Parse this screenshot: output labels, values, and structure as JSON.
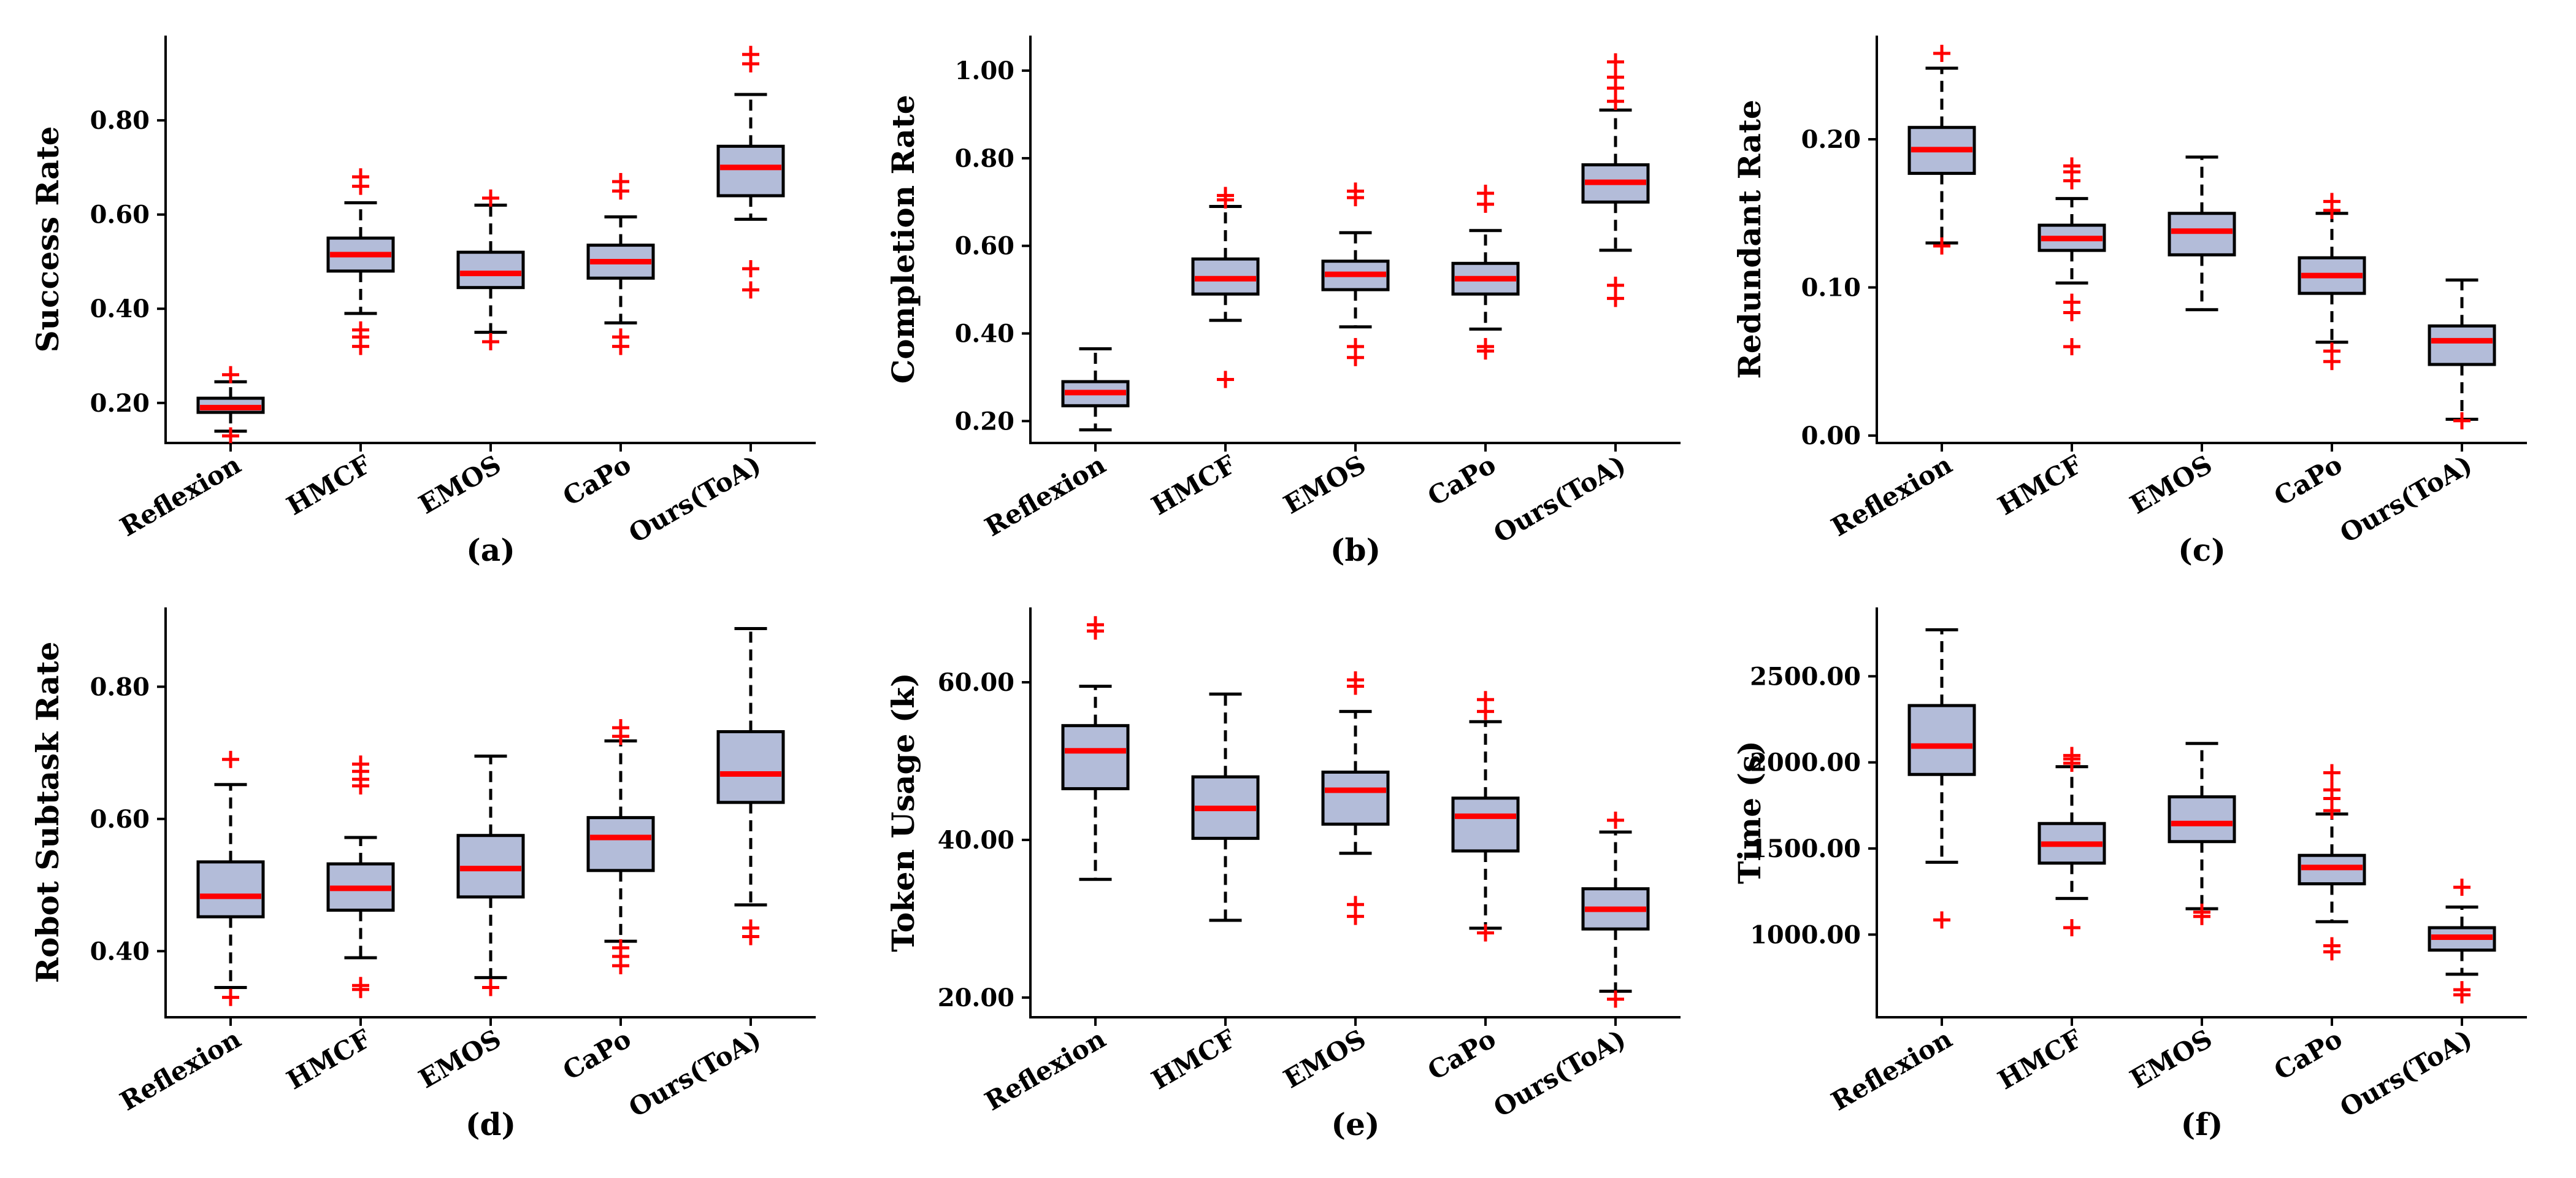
{
  "chart_data": [
    {
      "type": "box",
      "panel_label": "(a)",
      "ylabel": "Success Rate",
      "categories": [
        "Reflexion",
        "HMCF",
        "EMOS",
        "CaPo",
        "Ours(ToA)"
      ],
      "yticks": [
        0.2,
        0.4,
        0.6,
        0.8
      ],
      "tick_labels": [
        "0.20",
        "0.40",
        "0.60",
        "0.80"
      ],
      "ylim": [
        0.115,
        0.98
      ],
      "boxes": [
        {
          "whislo": 0.14,
          "q1": 0.18,
          "med": 0.19,
          "q3": 0.21,
          "whishi": 0.245,
          "fliers": [
            0.13,
            0.26
          ]
        },
        {
          "whislo": 0.39,
          "q1": 0.48,
          "med": 0.515,
          "q3": 0.55,
          "whishi": 0.625,
          "fliers": [
            0.32,
            0.34,
            0.355,
            0.66,
            0.68
          ]
        },
        {
          "whislo": 0.35,
          "q1": 0.445,
          "med": 0.475,
          "q3": 0.52,
          "whishi": 0.62,
          "fliers": [
            0.33,
            0.635
          ]
        },
        {
          "whislo": 0.37,
          "q1": 0.465,
          "med": 0.5,
          "q3": 0.535,
          "whishi": 0.595,
          "fliers": [
            0.32,
            0.34,
            0.65,
            0.67
          ]
        },
        {
          "whislo": 0.59,
          "q1": 0.64,
          "med": 0.7,
          "q3": 0.745,
          "whishi": 0.855,
          "fliers": [
            0.44,
            0.485,
            0.92,
            0.94
          ]
        }
      ]
    },
    {
      "type": "box",
      "panel_label": "(b)",
      "ylabel": "Completion Rate",
      "categories": [
        "Reflexion",
        "HMCF",
        "EMOS",
        "CaPo",
        "Ours(ToA)"
      ],
      "yticks": [
        0.2,
        0.4,
        0.6,
        0.8,
        1.0
      ],
      "tick_labels": [
        "0.20",
        "0.40",
        "0.60",
        "0.80",
        "1.00"
      ],
      "ylim": [
        0.15,
        1.08
      ],
      "boxes": [
        {
          "whislo": 0.18,
          "q1": 0.235,
          "med": 0.265,
          "q3": 0.29,
          "whishi": 0.365,
          "fliers": []
        },
        {
          "whislo": 0.43,
          "q1": 0.49,
          "med": 0.525,
          "q3": 0.57,
          "whishi": 0.69,
          "fliers": [
            0.295,
            0.705,
            0.715
          ]
        },
        {
          "whislo": 0.415,
          "q1": 0.5,
          "med": 0.535,
          "q3": 0.565,
          "whishi": 0.63,
          "fliers": [
            0.345,
            0.37,
            0.71,
            0.725
          ]
        },
        {
          "whislo": 0.41,
          "q1": 0.49,
          "med": 0.525,
          "q3": 0.56,
          "whishi": 0.635,
          "fliers": [
            0.36,
            0.37,
            0.695,
            0.72
          ]
        },
        {
          "whislo": 0.59,
          "q1": 0.7,
          "med": 0.745,
          "q3": 0.785,
          "whishi": 0.91,
          "fliers": [
            0.48,
            0.51,
            0.93,
            0.96,
            0.985,
            1.02
          ]
        }
      ]
    },
    {
      "type": "box",
      "panel_label": "(c)",
      "ylabel": "Redundant Rate",
      "categories": [
        "Reflexion",
        "HMCF",
        "EMOS",
        "CaPo",
        "Ours(ToA)"
      ],
      "yticks": [
        0.0,
        0.1,
        0.2
      ],
      "tick_labels": [
        "0.00",
        "0.10",
        "0.20"
      ],
      "ylim": [
        -0.005,
        0.27
      ],
      "boxes": [
        {
          "whislo": 0.13,
          "q1": 0.177,
          "med": 0.193,
          "q3": 0.208,
          "whishi": 0.248,
          "fliers": [
            0.128,
            0.258
          ]
        },
        {
          "whislo": 0.103,
          "q1": 0.125,
          "med": 0.133,
          "q3": 0.142,
          "whishi": 0.16,
          "fliers": [
            0.06,
            0.083,
            0.09,
            0.172,
            0.178,
            0.182
          ]
        },
        {
          "whislo": 0.085,
          "q1": 0.122,
          "med": 0.138,
          "q3": 0.15,
          "whishi": 0.188,
          "fliers": []
        },
        {
          "whislo": 0.063,
          "q1": 0.096,
          "med": 0.108,
          "q3": 0.12,
          "whishi": 0.15,
          "fliers": [
            0.05,
            0.057,
            0.152,
            0.158
          ]
        },
        {
          "whislo": 0.011,
          "q1": 0.048,
          "med": 0.064,
          "q3": 0.074,
          "whishi": 0.105,
          "fliers": [
            0.01
          ]
        }
      ]
    },
    {
      "type": "box",
      "panel_label": "(d)",
      "ylabel": "Robot Subtask Rate",
      "categories": [
        "Reflexion",
        "HMCF",
        "EMOS",
        "CaPo",
        "Ours(ToA)"
      ],
      "yticks": [
        0.4,
        0.6,
        0.8
      ],
      "tick_labels": [
        "0.40",
        "0.60",
        "0.80"
      ],
      "ylim": [
        0.3,
        0.92
      ],
      "boxes": [
        {
          "whislo": 0.345,
          "q1": 0.452,
          "med": 0.483,
          "q3": 0.535,
          "whishi": 0.652,
          "fliers": [
            0.33,
            0.69
          ]
        },
        {
          "whislo": 0.39,
          "q1": 0.462,
          "med": 0.495,
          "q3": 0.532,
          "whishi": 0.572,
          "fliers": [
            0.342,
            0.348,
            0.65,
            0.66,
            0.672,
            0.683
          ]
        },
        {
          "whislo": 0.36,
          "q1": 0.482,
          "med": 0.525,
          "q3": 0.575,
          "whishi": 0.695,
          "fliers": [
            0.345
          ]
        },
        {
          "whislo": 0.415,
          "q1": 0.522,
          "med": 0.572,
          "q3": 0.602,
          "whishi": 0.718,
          "fliers": [
            0.378,
            0.392,
            0.405,
            0.725,
            0.738
          ]
        },
        {
          "whislo": 0.47,
          "q1": 0.625,
          "med": 0.668,
          "q3": 0.732,
          "whishi": 0.888,
          "fliers": [
            0.422,
            0.435
          ]
        }
      ]
    },
    {
      "type": "box",
      "panel_label": "(e)",
      "ylabel": "Token Usage (k)",
      "categories": [
        "Reflexion",
        "HMCF",
        "EMOS",
        "CaPo",
        "Ours(ToA)"
      ],
      "yticks": [
        20,
        40,
        60
      ],
      "tick_labels": [
        "20.00",
        "40.00",
        "60.00"
      ],
      "ylim": [
        17.5,
        69.5
      ],
      "boxes": [
        {
          "whislo": 35.0,
          "q1": 46.5,
          "med": 51.3,
          "q3": 54.5,
          "whishi": 59.5,
          "fliers": [
            66.5,
            67.3
          ]
        },
        {
          "whislo": 29.8,
          "q1": 40.2,
          "med": 44.0,
          "q3": 48.0,
          "whishi": 58.5,
          "fliers": []
        },
        {
          "whislo": 38.3,
          "q1": 42.0,
          "med": 46.3,
          "q3": 48.6,
          "whishi": 56.3,
          "fliers": [
            30.3,
            31.8,
            59.5,
            60.3
          ]
        },
        {
          "whislo": 28.8,
          "q1": 38.6,
          "med": 43.0,
          "q3": 45.3,
          "whishi": 55.0,
          "fliers": [
            28.2,
            56.3,
            57.8
          ]
        },
        {
          "whislo": 20.8,
          "q1": 28.7,
          "med": 31.2,
          "q3": 33.8,
          "whishi": 41.0,
          "fliers": [
            19.8,
            42.5
          ]
        }
      ]
    },
    {
      "type": "box",
      "panel_label": "(f)",
      "ylabel": "Time (s)",
      "categories": [
        "Reflexion",
        "HMCF",
        "EMOS",
        "CaPo",
        "Ours(ToA)"
      ],
      "yticks": [
        1000,
        1500,
        2000,
        2500
      ],
      "tick_labels": [
        "1000.00",
        "1500.00",
        "2000.00",
        "2500.00"
      ],
      "ylim": [
        520,
        2900
      ],
      "boxes": [
        {
          "whislo": 1420,
          "q1": 1930,
          "med": 2095,
          "q3": 2330,
          "whishi": 2770,
          "fliers": [
            1085
          ]
        },
        {
          "whislo": 1210,
          "q1": 1415,
          "med": 1525,
          "q3": 1645,
          "whishi": 1975,
          "fliers": [
            1040,
            1995,
            2020,
            2040
          ]
        },
        {
          "whislo": 1150,
          "q1": 1540,
          "med": 1645,
          "q3": 1800,
          "whishi": 2110,
          "fliers": [
            1105,
            1130
          ]
        },
        {
          "whislo": 1075,
          "q1": 1295,
          "med": 1390,
          "q3": 1460,
          "whishi": 1700,
          "fliers": [
            900,
            935,
            1720,
            1790,
            1840,
            1940
          ]
        },
        {
          "whislo": 770,
          "q1": 910,
          "med": 985,
          "q3": 1040,
          "whishi": 1160,
          "fliers": [
            650,
            680,
            1275
          ]
        }
      ]
    }
  ]
}
